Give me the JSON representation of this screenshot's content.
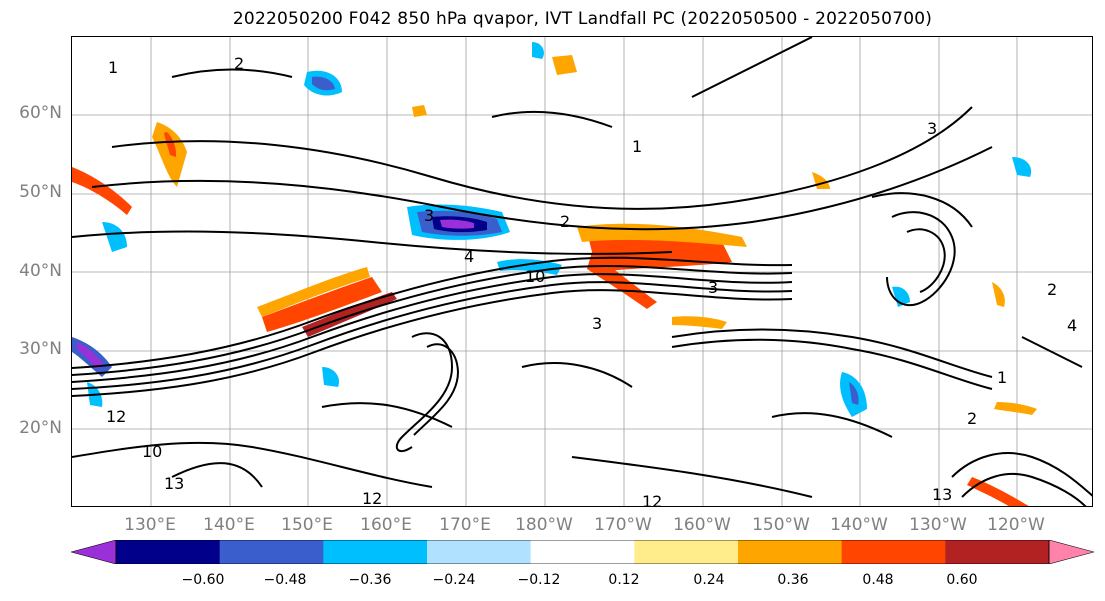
{
  "title": "2022050200 F042 850 hPa qvapor, IVT Landfall PC (2022050500 - 2022050700)",
  "lat_labels": [
    "60°N",
    "50°N",
    "40°N",
    "30°N",
    "20°N"
  ],
  "lon_labels": [
    "130°E",
    "140°E",
    "150°E",
    "160°E",
    "170°E",
    "180°W",
    "170°W",
    "160°W",
    "150°W",
    "140°W",
    "130°W",
    "120°W"
  ],
  "contour_labels": [
    "1",
    "2",
    "3",
    "4",
    "10",
    "12",
    "13",
    "2",
    "3",
    "1",
    "10",
    "12",
    "12",
    "13",
    "2",
    "1",
    "3",
    "2",
    "4",
    "3"
  ],
  "colorbar": {
    "colors": [
      "#9b30d9",
      "#00008b",
      "#3a5fcd",
      "#00bfff",
      "#b0e2ff",
      "#ffffff",
      "#ffec8b",
      "#ffa500",
      "#ff4500",
      "#b22222",
      "#ff82ab"
    ],
    "tick_labels": [
      "−0.60",
      "−0.48",
      "−0.36",
      "−0.24",
      "−0.12",
      "0.12",
      "0.24",
      "0.36",
      "0.48",
      "0.60"
    ]
  }
}
